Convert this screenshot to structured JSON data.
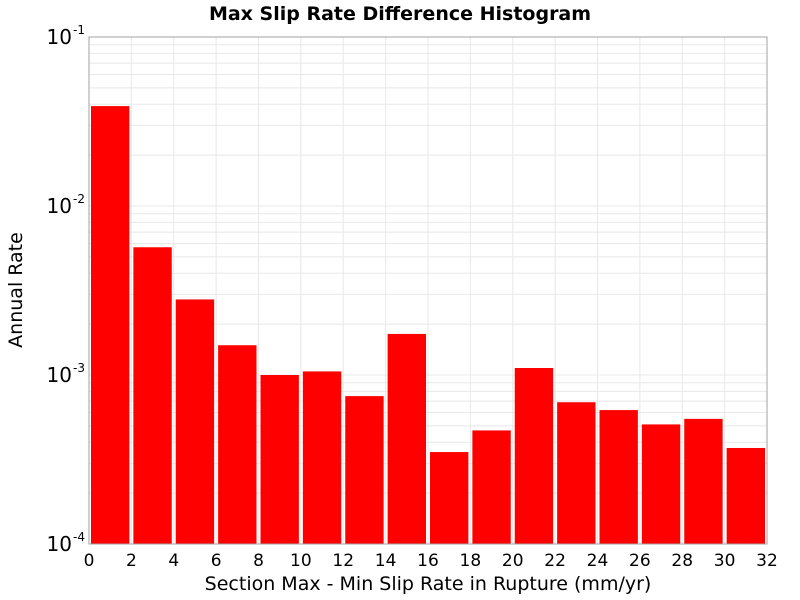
{
  "chart_data": {
    "type": "bar",
    "title": "Max Slip Rate Difference Histogram",
    "xlabel": "Section Max - Min Slip Rate in Rupture (mm/yr)",
    "ylabel": "Annual Rate",
    "xlim": [
      0,
      32
    ],
    "ylim": [
      0.0001,
      0.1
    ],
    "yscale": "log",
    "grid": true,
    "x_ticks": [
      "0",
      "2",
      "4",
      "6",
      "8",
      "10",
      "12",
      "14",
      "16",
      "18",
      "20",
      "22",
      "24",
      "26",
      "28",
      "30",
      "32"
    ],
    "y_ticks": [
      {
        "base": "10",
        "exp": "-1",
        "value": 0.1
      },
      {
        "base": "10",
        "exp": "-2",
        "value": 0.01
      },
      {
        "base": "10",
        "exp": "-3",
        "value": 0.001
      },
      {
        "base": "10",
        "exp": "-4",
        "value": 0.0001
      }
    ],
    "bin_width": 2,
    "bins": [
      {
        "x": 1,
        "value": 0.039
      },
      {
        "x": 3,
        "value": 0.0057
      },
      {
        "x": 5,
        "value": 0.0028
      },
      {
        "x": 7,
        "value": 0.0015
      },
      {
        "x": 9,
        "value": 0.001
      },
      {
        "x": 11,
        "value": 0.00105
      },
      {
        "x": 13,
        "value": 0.00075
      },
      {
        "x": 15,
        "value": 0.00175
      },
      {
        "x": 17,
        "value": 0.00035
      },
      {
        "x": 19,
        "value": 0.00047
      },
      {
        "x": 21,
        "value": 0.0011
      },
      {
        "x": 23,
        "value": 0.00069
      },
      {
        "x": 25,
        "value": 0.00062
      },
      {
        "x": 27,
        "value": 0.00051
      },
      {
        "x": 29,
        "value": 0.00055
      },
      {
        "x": 31,
        "value": 0.00037
      }
    ],
    "bar_color": "#ff0000",
    "grid_color": "#e8e8e8",
    "frame_color": "#a0a0a0"
  }
}
